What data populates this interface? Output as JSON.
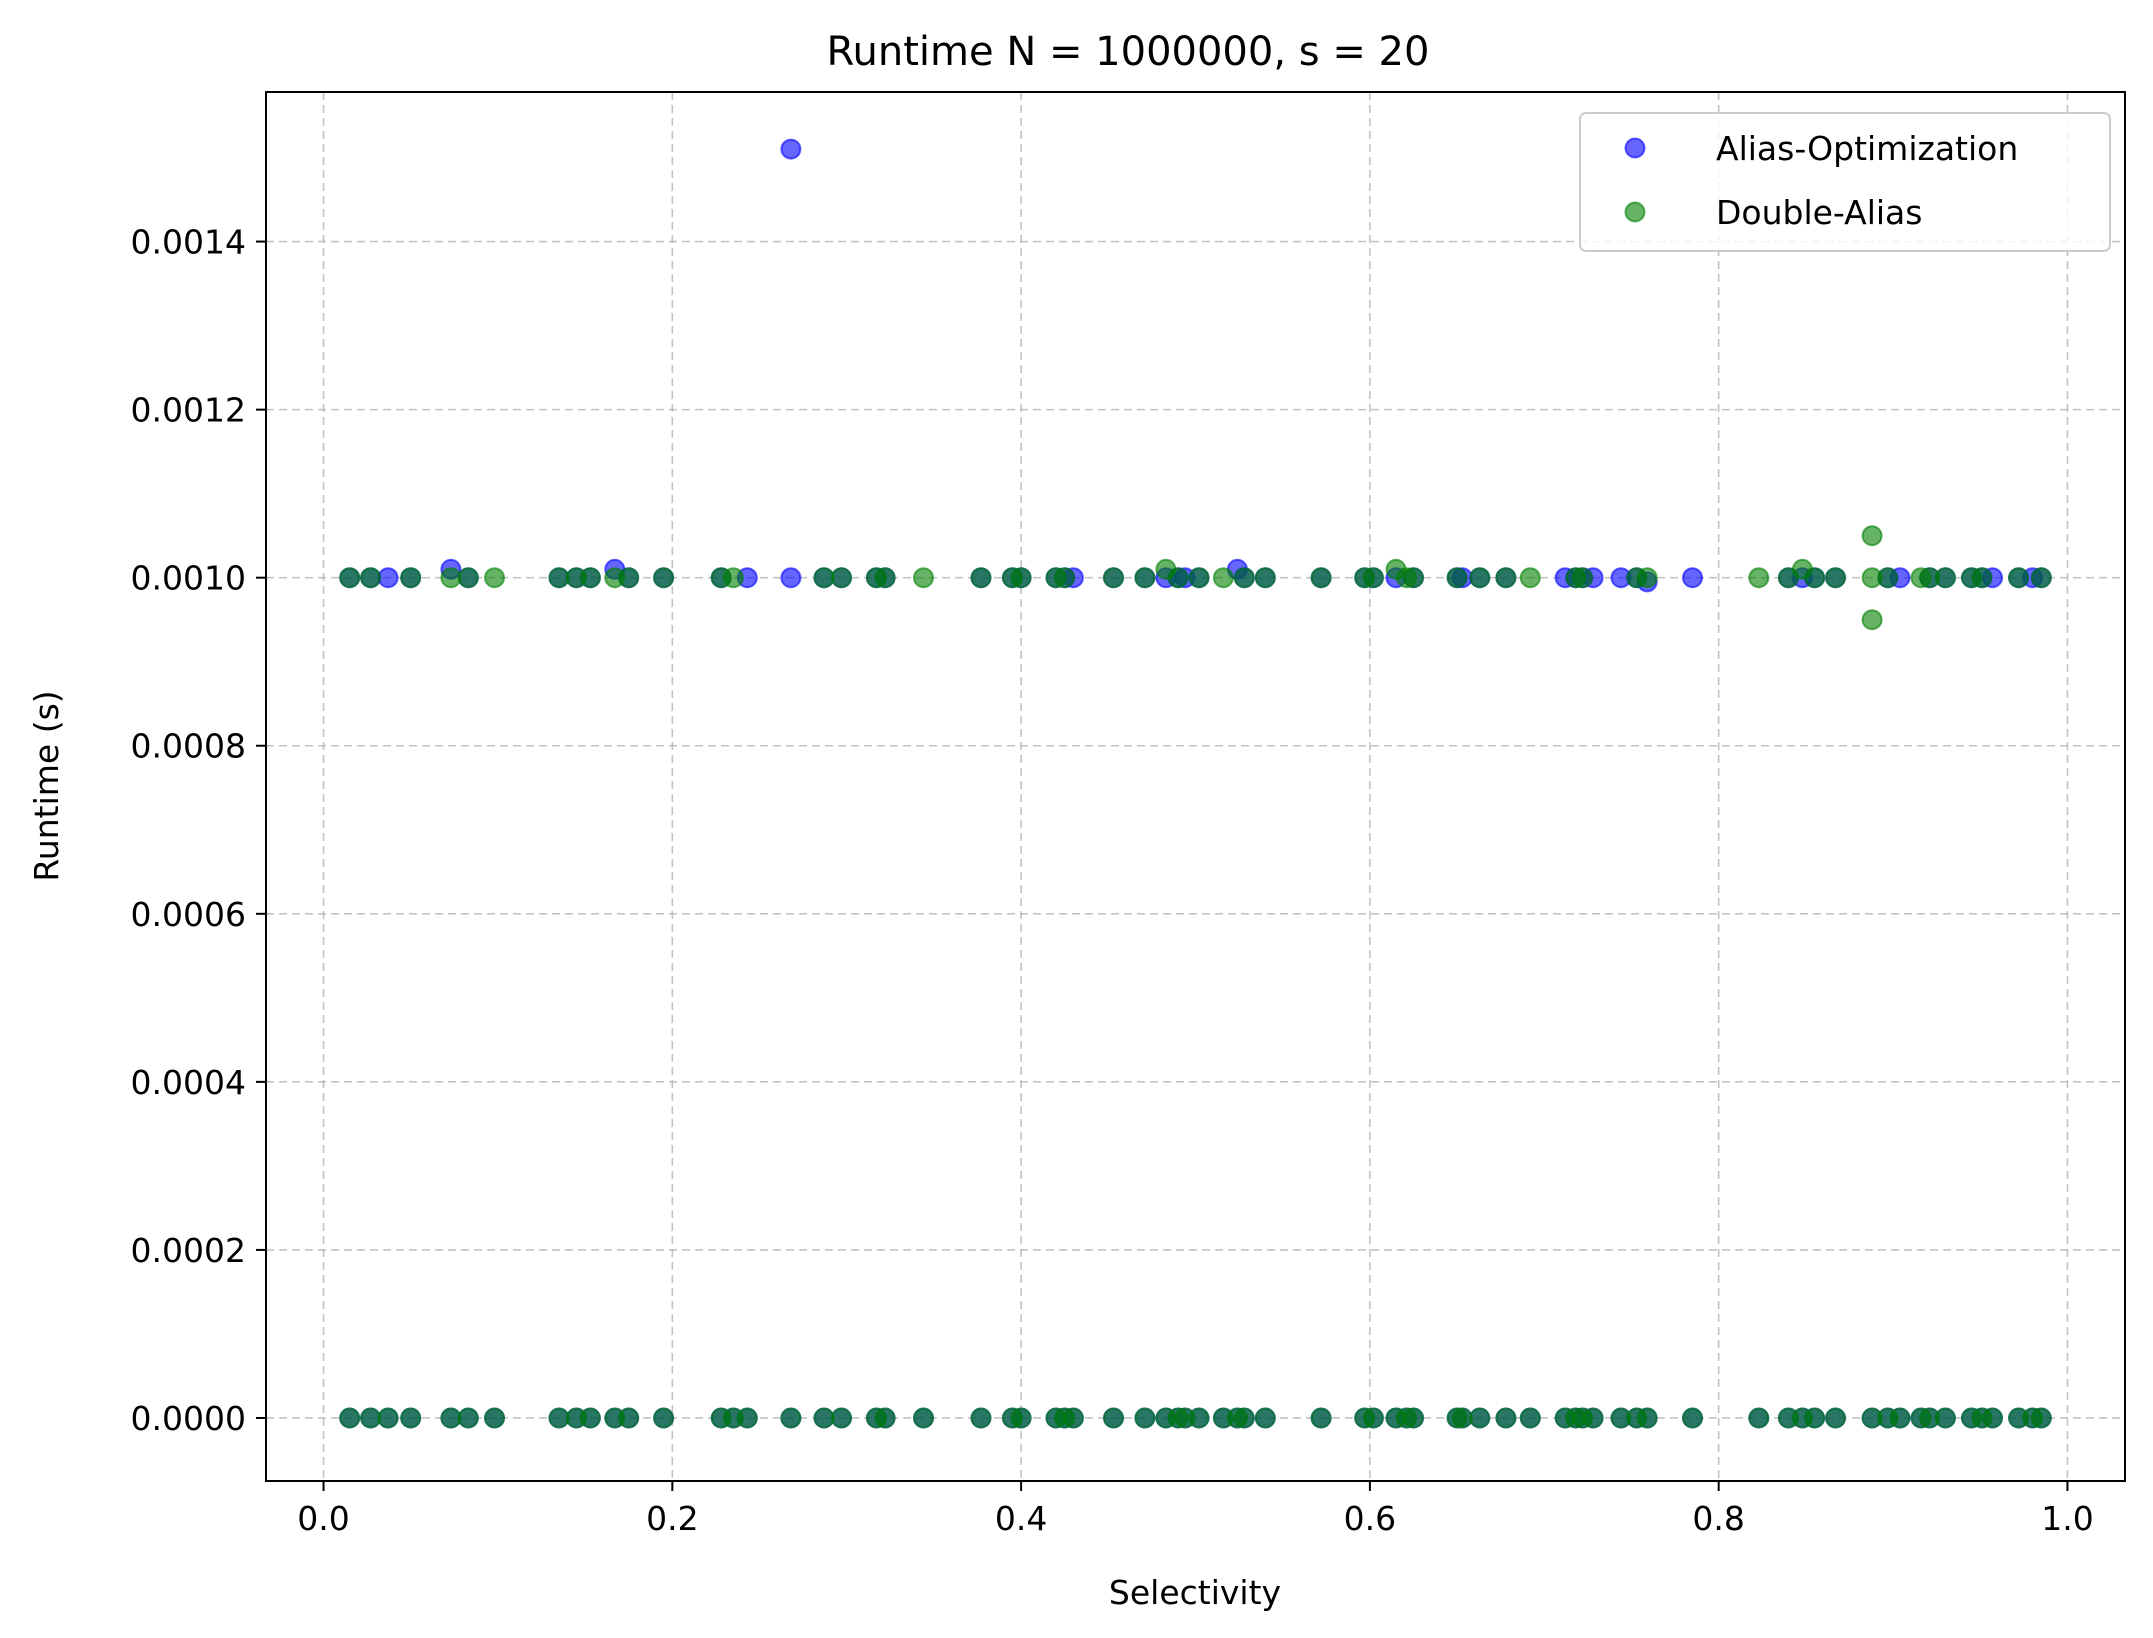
{
  "chart_data": {
    "type": "scatter",
    "title": "Runtime N = 1000000, s = 20",
    "xlabel": "Selectivity",
    "ylabel": "Runtime (s)",
    "xlim": [
      -0.033,
      1.033
    ],
    "ylim": [
      -7.5e-05,
      0.001578
    ],
    "xticks": [
      0.0,
      0.2,
      0.4,
      0.6,
      0.8,
      1.0
    ],
    "xtick_labels": [
      "0.0",
      "0.2",
      "0.4",
      "0.6",
      "0.8",
      "1.0"
    ],
    "yticks": [
      0.0,
      0.0002,
      0.0004,
      0.0006,
      0.0008,
      0.001,
      0.0012,
      0.0014
    ],
    "ytick_labels": [
      "0.0000",
      "0.0002",
      "0.0004",
      "0.0006",
      "0.0008",
      "0.0010",
      "0.0012",
      "0.0014"
    ],
    "grid": true,
    "legend_position": "top-right",
    "series": [
      {
        "name": "Alias-Optimization",
        "color": "#0000ff",
        "points": [
          [
            0.015,
            0.001
          ],
          [
            0.027,
            0.001
          ],
          [
            0.037,
            0.001
          ],
          [
            0.05,
            0.001
          ],
          [
            0.073,
            0.00101
          ],
          [
            0.083,
            0.001
          ],
          [
            0.135,
            0.001
          ],
          [
            0.145,
            0.001
          ],
          [
            0.153,
            0.001
          ],
          [
            0.167,
            0.00101
          ],
          [
            0.175,
            0.001
          ],
          [
            0.195,
            0.001
          ],
          [
            0.228,
            0.001
          ],
          [
            0.243,
            0.001
          ],
          [
            0.268,
            0.00151
          ],
          [
            0.268,
            0.001
          ],
          [
            0.287,
            0.001
          ],
          [
            0.297,
            0.001
          ],
          [
            0.317,
            0.001
          ],
          [
            0.322,
            0.001
          ],
          [
            0.377,
            0.001
          ],
          [
            0.395,
            0.001
          ],
          [
            0.4,
            0.001
          ],
          [
            0.42,
            0.001
          ],
          [
            0.425,
            0.001
          ],
          [
            0.43,
            0.001
          ],
          [
            0.453,
            0.001
          ],
          [
            0.471,
            0.001
          ],
          [
            0.483,
            0.001
          ],
          [
            0.49,
            0.001
          ],
          [
            0.494,
            0.001
          ],
          [
            0.502,
            0.001
          ],
          [
            0.524,
            0.00101
          ],
          [
            0.528,
            0.001
          ],
          [
            0.54,
            0.001
          ],
          [
            0.572,
            0.001
          ],
          [
            0.597,
            0.001
          ],
          [
            0.602,
            0.001
          ],
          [
            0.615,
            0.001
          ],
          [
            0.625,
            0.001
          ],
          [
            0.65,
            0.001
          ],
          [
            0.653,
            0.001
          ],
          [
            0.663,
            0.001
          ],
          [
            0.678,
            0.001
          ],
          [
            0.712,
            0.001
          ],
          [
            0.718,
            0.001
          ],
          [
            0.722,
            0.001
          ],
          [
            0.728,
            0.001
          ],
          [
            0.744,
            0.001
          ],
          [
            0.753,
            0.001
          ],
          [
            0.759,
            0.000995
          ],
          [
            0.785,
            0.001
          ],
          [
            0.84,
            0.001
          ],
          [
            0.848,
            0.001
          ],
          [
            0.855,
            0.001
          ],
          [
            0.867,
            0.001
          ],
          [
            0.897,
            0.001
          ],
          [
            0.904,
            0.001
          ],
          [
            0.921,
            0.001
          ],
          [
            0.93,
            0.001
          ],
          [
            0.945,
            0.001
          ],
          [
            0.951,
            0.001
          ],
          [
            0.957,
            0.001
          ],
          [
            0.972,
            0.001
          ],
          [
            0.98,
            0.001
          ],
          [
            0.985,
            0.001
          ],
          [
            0.015,
            0.0
          ],
          [
            0.027,
            0.0
          ],
          [
            0.037,
            0.0
          ],
          [
            0.05,
            0.0
          ],
          [
            0.073,
            0.0
          ],
          [
            0.083,
            0.0
          ],
          [
            0.098,
            0.0
          ],
          [
            0.135,
            0.0
          ],
          [
            0.145,
            0.0
          ],
          [
            0.153,
            0.0
          ],
          [
            0.167,
            0.0
          ],
          [
            0.175,
            0.0
          ],
          [
            0.195,
            0.0
          ],
          [
            0.228,
            0.0
          ],
          [
            0.235,
            0.0
          ],
          [
            0.243,
            0.0
          ],
          [
            0.268,
            0.0
          ],
          [
            0.287,
            0.0
          ],
          [
            0.297,
            0.0
          ],
          [
            0.317,
            0.0
          ],
          [
            0.322,
            0.0
          ],
          [
            0.344,
            0.0
          ],
          [
            0.377,
            0.0
          ],
          [
            0.395,
            0.0
          ],
          [
            0.4,
            0.0
          ],
          [
            0.42,
            0.0
          ],
          [
            0.425,
            0.0
          ],
          [
            0.43,
            0.0
          ],
          [
            0.453,
            0.0
          ],
          [
            0.471,
            0.0
          ],
          [
            0.483,
            0.0
          ],
          [
            0.49,
            0.0
          ],
          [
            0.494,
            0.0
          ],
          [
            0.502,
            0.0
          ],
          [
            0.516,
            0.0
          ],
          [
            0.524,
            0.0
          ],
          [
            0.528,
            0.0
          ],
          [
            0.54,
            0.0
          ],
          [
            0.572,
            0.0
          ],
          [
            0.597,
            0.0
          ],
          [
            0.602,
            0.0
          ],
          [
            0.615,
            0.0
          ],
          [
            0.621,
            0.0
          ],
          [
            0.625,
            0.0
          ],
          [
            0.65,
            0.0
          ],
          [
            0.653,
            0.0
          ],
          [
            0.663,
            0.0
          ],
          [
            0.678,
            0.0
          ],
          [
            0.692,
            0.0
          ],
          [
            0.712,
            0.0
          ],
          [
            0.718,
            0.0
          ],
          [
            0.722,
            0.0
          ],
          [
            0.728,
            0.0
          ],
          [
            0.744,
            0.0
          ],
          [
            0.753,
            0.0
          ],
          [
            0.759,
            0.0
          ],
          [
            0.785,
            0.0
          ],
          [
            0.823,
            0.0
          ],
          [
            0.84,
            0.0
          ],
          [
            0.848,
            0.0
          ],
          [
            0.855,
            0.0
          ],
          [
            0.867,
            0.0
          ],
          [
            0.888,
            0.0
          ],
          [
            0.897,
            0.0
          ],
          [
            0.904,
            0.0
          ],
          [
            0.916,
            0.0
          ],
          [
            0.921,
            0.0
          ],
          [
            0.93,
            0.0
          ],
          [
            0.945,
            0.0
          ],
          [
            0.951,
            0.0
          ],
          [
            0.957,
            0.0
          ],
          [
            0.972,
            0.0
          ],
          [
            0.98,
            0.0
          ],
          [
            0.985,
            0.0
          ]
        ]
      },
      {
        "name": "Double-Alias",
        "color": "#008000",
        "points": [
          [
            0.015,
            0.001
          ],
          [
            0.027,
            0.001
          ],
          [
            0.05,
            0.001
          ],
          [
            0.073,
            0.001
          ],
          [
            0.083,
            0.001
          ],
          [
            0.098,
            0.001
          ],
          [
            0.135,
            0.001
          ],
          [
            0.145,
            0.001
          ],
          [
            0.153,
            0.001
          ],
          [
            0.167,
            0.001
          ],
          [
            0.175,
            0.001
          ],
          [
            0.195,
            0.001
          ],
          [
            0.228,
            0.001
          ],
          [
            0.235,
            0.001
          ],
          [
            0.287,
            0.001
          ],
          [
            0.297,
            0.001
          ],
          [
            0.317,
            0.001
          ],
          [
            0.322,
            0.001
          ],
          [
            0.344,
            0.001
          ],
          [
            0.377,
            0.001
          ],
          [
            0.395,
            0.001
          ],
          [
            0.4,
            0.001
          ],
          [
            0.42,
            0.001
          ],
          [
            0.425,
            0.001
          ],
          [
            0.453,
            0.001
          ],
          [
            0.471,
            0.001
          ],
          [
            0.483,
            0.00101
          ],
          [
            0.49,
            0.001
          ],
          [
            0.502,
            0.001
          ],
          [
            0.516,
            0.001
          ],
          [
            0.528,
            0.001
          ],
          [
            0.54,
            0.001
          ],
          [
            0.572,
            0.001
          ],
          [
            0.597,
            0.001
          ],
          [
            0.602,
            0.001
          ],
          [
            0.615,
            0.00101
          ],
          [
            0.621,
            0.001
          ],
          [
            0.625,
            0.001
          ],
          [
            0.65,
            0.001
          ],
          [
            0.663,
            0.001
          ],
          [
            0.678,
            0.001
          ],
          [
            0.692,
            0.001
          ],
          [
            0.718,
            0.001
          ],
          [
            0.722,
            0.001
          ],
          [
            0.753,
            0.001
          ],
          [
            0.759,
            0.001
          ],
          [
            0.823,
            0.001
          ],
          [
            0.84,
            0.001
          ],
          [
            0.848,
            0.00101
          ],
          [
            0.855,
            0.001
          ],
          [
            0.867,
            0.001
          ],
          [
            0.888,
            0.00105
          ],
          [
            0.888,
            0.001
          ],
          [
            0.888,
            0.00095
          ],
          [
            0.897,
            0.001
          ],
          [
            0.916,
            0.001
          ],
          [
            0.921,
            0.001
          ],
          [
            0.93,
            0.001
          ],
          [
            0.945,
            0.001
          ],
          [
            0.951,
            0.001
          ],
          [
            0.972,
            0.001
          ],
          [
            0.985,
            0.001
          ],
          [
            0.015,
            0.0
          ],
          [
            0.027,
            0.0
          ],
          [
            0.037,
            0.0
          ],
          [
            0.05,
            0.0
          ],
          [
            0.073,
            0.0
          ],
          [
            0.083,
            0.0
          ],
          [
            0.098,
            0.0
          ],
          [
            0.135,
            0.0
          ],
          [
            0.145,
            0.0
          ],
          [
            0.153,
            0.0
          ],
          [
            0.167,
            0.0
          ],
          [
            0.175,
            0.0
          ],
          [
            0.195,
            0.0
          ],
          [
            0.228,
            0.0
          ],
          [
            0.235,
            0.0
          ],
          [
            0.243,
            0.0
          ],
          [
            0.268,
            0.0
          ],
          [
            0.287,
            0.0
          ],
          [
            0.297,
            0.0
          ],
          [
            0.317,
            0.0
          ],
          [
            0.322,
            0.0
          ],
          [
            0.344,
            0.0
          ],
          [
            0.377,
            0.0
          ],
          [
            0.395,
            0.0
          ],
          [
            0.4,
            0.0
          ],
          [
            0.42,
            0.0
          ],
          [
            0.425,
            0.0
          ],
          [
            0.43,
            0.0
          ],
          [
            0.453,
            0.0
          ],
          [
            0.471,
            0.0
          ],
          [
            0.483,
            0.0
          ],
          [
            0.49,
            0.0
          ],
          [
            0.494,
            0.0
          ],
          [
            0.502,
            0.0
          ],
          [
            0.516,
            0.0
          ],
          [
            0.524,
            0.0
          ],
          [
            0.528,
            0.0
          ],
          [
            0.54,
            0.0
          ],
          [
            0.572,
            0.0
          ],
          [
            0.597,
            0.0
          ],
          [
            0.602,
            0.0
          ],
          [
            0.615,
            0.0
          ],
          [
            0.621,
            0.0
          ],
          [
            0.625,
            0.0
          ],
          [
            0.65,
            0.0
          ],
          [
            0.653,
            0.0
          ],
          [
            0.663,
            0.0
          ],
          [
            0.678,
            0.0
          ],
          [
            0.692,
            0.0
          ],
          [
            0.712,
            0.0
          ],
          [
            0.718,
            0.0
          ],
          [
            0.722,
            0.0
          ],
          [
            0.728,
            0.0
          ],
          [
            0.744,
            0.0
          ],
          [
            0.753,
            0.0
          ],
          [
            0.759,
            0.0
          ],
          [
            0.785,
            0.0
          ],
          [
            0.823,
            0.0
          ],
          [
            0.84,
            0.0
          ],
          [
            0.848,
            0.0
          ],
          [
            0.855,
            0.0
          ],
          [
            0.867,
            0.0
          ],
          [
            0.888,
            0.0
          ],
          [
            0.897,
            0.0
          ],
          [
            0.904,
            0.0
          ],
          [
            0.916,
            0.0
          ],
          [
            0.921,
            0.0
          ],
          [
            0.93,
            0.0
          ],
          [
            0.945,
            0.0
          ],
          [
            0.951,
            0.0
          ],
          [
            0.957,
            0.0
          ],
          [
            0.972,
            0.0
          ],
          [
            0.98,
            0.0
          ],
          [
            0.985,
            0.0
          ]
        ]
      }
    ]
  }
}
